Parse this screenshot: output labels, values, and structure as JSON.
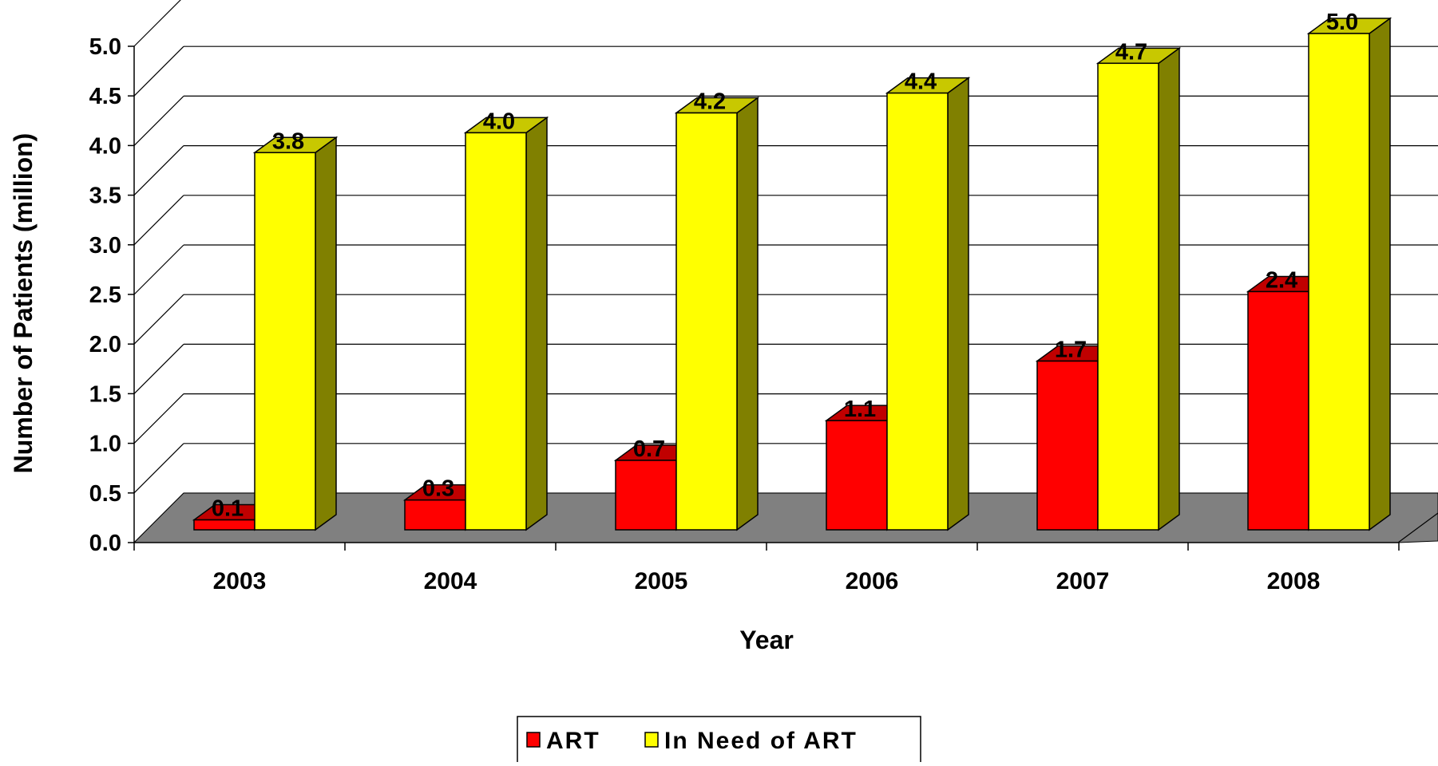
{
  "chart_data": {
    "type": "bar",
    "style": "3d-clustered-column",
    "categories": [
      "2003",
      "2004",
      "2005",
      "2006",
      "2007",
      "2008"
    ],
    "series": [
      {
        "name": "ART",
        "values": [
          0.1,
          0.3,
          0.7,
          1.1,
          1.7,
          2.4
        ],
        "labels": [
          "0.1",
          "0.3",
          "0.7",
          "1.1",
          "1.7",
          "2.4"
        ],
        "color": "#ff0000",
        "top_color": "#c00000"
      },
      {
        "name": "In Need of ART",
        "values": [
          3.8,
          4.0,
          4.2,
          4.4,
          4.7,
          5.0
        ],
        "labels": [
          "3.8",
          "4.0",
          "4.2",
          "4.4",
          "4.7",
          "5.0"
        ],
        "color": "#ffff00",
        "top_color": "#c8c800",
        "side_color": "#808000"
      }
    ],
    "xlabel": "Year",
    "ylabel": "Number of Patients (million)",
    "ylim": [
      0,
      5.0
    ],
    "yticks": [
      "0.0",
      "0.5",
      "1.0",
      "1.5",
      "2.0",
      "2.5",
      "3.0",
      "3.5",
      "4.0",
      "4.5",
      "5.0"
    ],
    "grid": true,
    "floor_color": "#808080",
    "legend_position": "bottom"
  }
}
